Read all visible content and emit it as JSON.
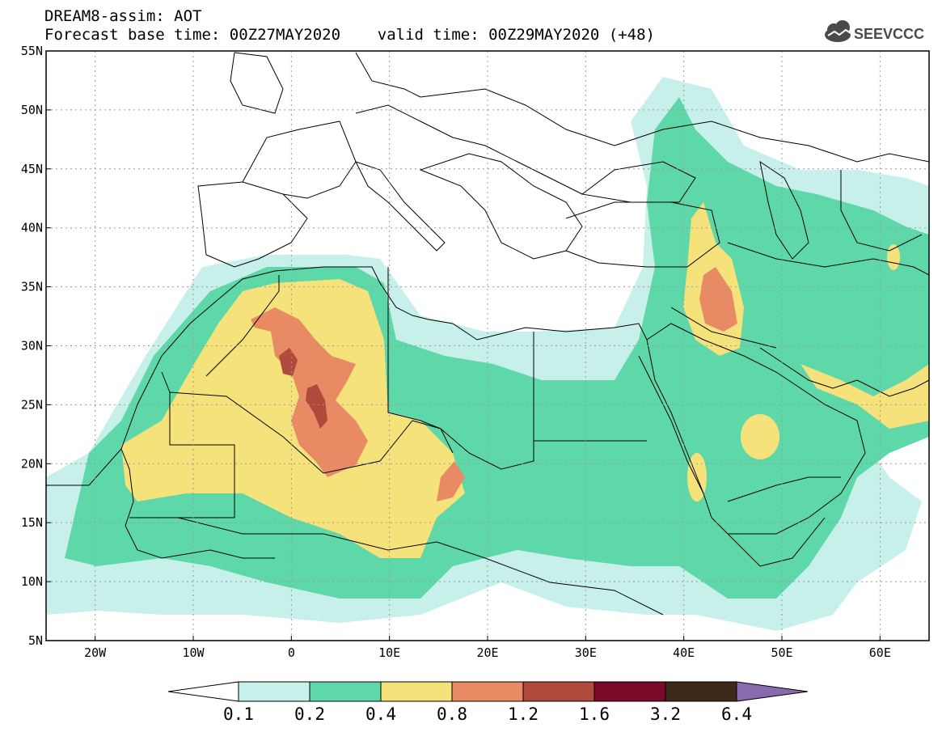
{
  "header": {
    "title": "DREAM8-assim: AOT",
    "subtitle": "Forecast base time: 00Z27MAY2020    valid time: 00Z29MAY2020 (+48)",
    "logo_text": "SEEVCCC"
  },
  "map": {
    "lon_range": [
      -25,
      65
    ],
    "lat_range": [
      5,
      55
    ],
    "lon_ticks": [
      {
        "value": -20,
        "label": "20W"
      },
      {
        "value": -10,
        "label": "10W"
      },
      {
        "value": 0,
        "label": "0"
      },
      {
        "value": 10,
        "label": "10E"
      },
      {
        "value": 20,
        "label": "20E"
      },
      {
        "value": 30,
        "label": "30E"
      },
      {
        "value": 40,
        "label": "40E"
      },
      {
        "value": 50,
        "label": "50E"
      },
      {
        "value": 60,
        "label": "60E"
      }
    ],
    "lat_ticks": [
      {
        "value": 55,
        "label": "55N"
      },
      {
        "value": 50,
        "label": "50N"
      },
      {
        "value": 45,
        "label": "45N"
      },
      {
        "value": 40,
        "label": "40N"
      },
      {
        "value": 35,
        "label": "35N"
      },
      {
        "value": 30,
        "label": "30N"
      },
      {
        "value": 25,
        "label": "25N"
      },
      {
        "value": 20,
        "label": "20N"
      },
      {
        "value": 15,
        "label": "15N"
      },
      {
        "value": 10,
        "label": "10N"
      },
      {
        "value": 5,
        "label": "5N"
      }
    ],
    "grid": true
  },
  "legend": {
    "colors": [
      "#ffffff",
      "#c8f0ea",
      "#5ed8a8",
      "#f6e27a",
      "#e88a64",
      "#b04a3c",
      "#7a0a28",
      "#3e2a18",
      "#8a6aae"
    ],
    "labels": [
      "0.1",
      "0.2",
      "0.4",
      "0.8",
      "1.2",
      "1.6",
      "3.2",
      "6.4"
    ]
  }
}
